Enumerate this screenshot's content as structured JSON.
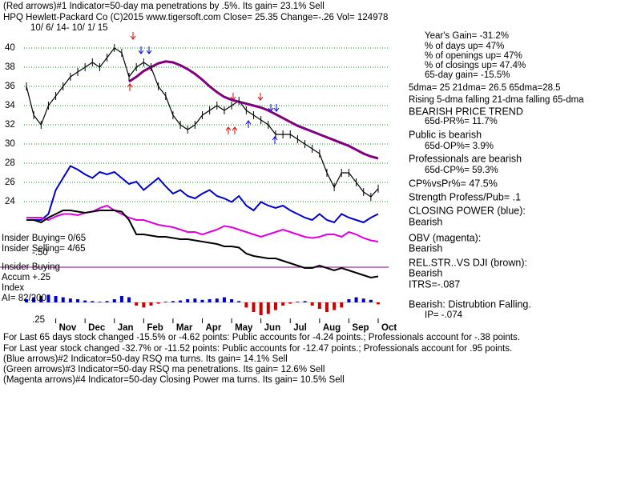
{
  "chart_data": [
    {
      "type": "line",
      "categories": [
        null,
        null,
        null,
        null,
        "Nov",
        null,
        null,
        null,
        "Dec",
        null,
        null,
        null,
        "Jan",
        null,
        null,
        null,
        "Feb",
        null,
        null,
        null,
        "Mar",
        null,
        null,
        null,
        "Apr",
        null,
        null,
        null,
        "May",
        null,
        null,
        null,
        "Jun",
        null,
        null,
        null,
        "Jul",
        null,
        null,
        null,
        "Aug",
        null,
        null,
        null,
        "Sep",
        null,
        null,
        null,
        "Oct"
      ],
      "series": [
        {
          "color": "#000000",
          "values": [
            36,
            33,
            32,
            34,
            35,
            36,
            37,
            37.5,
            38,
            38.5,
            38,
            39,
            40,
            39.5,
            37,
            38,
            38.5,
            38,
            36,
            35,
            33,
            32,
            31.5,
            32,
            33,
            33.5,
            34,
            33.5,
            34,
            34.5,
            33.5,
            33,
            32.5,
            32,
            31,
            31,
            31,
            30.5,
            30,
            29.5,
            29,
            27,
            25.5,
            27,
            27,
            26,
            25,
            24.5,
            25.35
          ]
        },
        {
          "color": "#800080",
          "values": [
            null,
            null,
            null,
            null,
            null,
            null,
            null,
            null,
            null,
            null,
            null,
            null,
            null,
            null,
            36.5,
            37,
            37.6,
            38,
            38.4,
            38.6,
            38.5,
            38.2,
            37.8,
            37.3,
            36.7,
            36,
            35.4,
            34.9,
            34.6,
            34.4,
            34.2,
            34,
            33.8,
            33.5,
            33.1,
            32.7,
            32.3,
            31.9,
            31.6,
            31.3,
            31,
            30.7,
            30.4,
            30.1,
            29.8,
            29.4,
            29,
            28.7,
            28.5
          ]
        }
      ],
      "ylim": [
        24,
        40
      ],
      "yticks": [
        24,
        26,
        28,
        30,
        32,
        34,
        36,
        38,
        40
      ],
      "grid": true
    },
    {
      "type": "line",
      "series": [
        {
          "color": "#0000cc",
          "values": [
            50,
            50,
            50,
            55,
            75,
            85,
            95,
            92,
            88,
            85,
            90,
            88,
            90,
            85,
            80,
            82,
            75,
            80,
            85,
            78,
            72,
            75,
            70,
            68,
            72,
            75,
            70,
            68,
            65,
            70,
            62,
            58,
            65,
            62,
            60,
            62,
            58,
            55,
            52,
            50,
            55,
            50,
            48,
            55,
            52,
            50,
            48,
            52,
            55
          ]
        },
        {
          "color": "#e000e0",
          "values": [
            52,
            52,
            52,
            50,
            53,
            55,
            55,
            54,
            56,
            57,
            60,
            62,
            58,
            55,
            52,
            50,
            50,
            48,
            46,
            45,
            44,
            42,
            40,
            40,
            38,
            40,
            42,
            45,
            44,
            42,
            40,
            38,
            36,
            38,
            40,
            42,
            40,
            38,
            36,
            35,
            36,
            38,
            38,
            36,
            40,
            38,
            35,
            33,
            32
          ]
        },
        {
          "color": "#000000",
          "values": [
            50,
            50,
            48,
            52,
            55,
            58,
            58,
            57,
            56,
            57,
            58,
            58,
            58,
            57,
            50,
            38,
            38,
            37,
            36,
            36,
            35,
            34,
            34,
            33,
            32,
            31,
            30,
            28,
            28,
            27,
            22,
            20,
            19,
            18,
            18,
            16,
            14,
            12,
            10,
            10,
            12,
            10,
            8,
            10,
            8,
            6,
            4,
            2,
            3
          ]
        }
      ],
      "ylim": [
        0,
        100
      ]
    },
    {
      "type": "bar",
      "values": [
        0.05,
        0.08,
        0.1,
        0.12,
        0.1,
        0.08,
        0.06,
        0.05,
        0.03,
        0.02,
        0.01,
        0.02,
        0.05,
        0.1,
        0.08,
        -0.05,
        -0.08,
        -0.05,
        -0.02,
        0.01,
        0.02,
        0.03,
        0.05,
        0.06,
        0.04,
        0.05,
        0.06,
        0.08,
        0.05,
        0.02,
        -0.08,
        -0.15,
        -0.2,
        -0.18,
        -0.12,
        -0.05,
        -0.02,
        0.01,
        0.02,
        -0.05,
        -0.1,
        -0.15,
        -0.12,
        -0.08,
        0.05,
        0.08,
        0.06,
        0.04,
        -0.03
      ],
      "colors": [
        "#0000cc",
        "#cc0000"
      ],
      "ylim": [
        -0.25,
        0.25
      ]
    }
  ],
  "texts": [
    "(Red arrows)#1 Indicator=50-day ma penetrations by .5%. Its gain= 23.1% Sell",
    "HPQ   Hewlett-Packard Co  (C)2015 www.tigersoft.com     Close=  25.35  Change=-.26 Vol= 124978",
    "10/ 6/ 14-  10/ 1/ 15",
    "Year's Gain= -31.2%",
    "% of days up= 47%",
    "% of openings up= 47%",
    "% of closings up= 47.4%",
    "65-day gain= -15.5%",
    "5dma= 25 21dma= 26.5 65dma=28.5",
    "Rising 5-dma falling 21-dma falling 65-dma",
    "BEARISH PRICE TREND",
    "65d-PR%= 11.7%",
    "Public is bearish",
    "65d-OP%= 3.9%",
    "Professionals are bearish",
    "65d-CP%= 59.3%",
    "CP%vsPr%=  47.5%",
    "Strength Profess/Pub= .1",
    "CLOSING POWER (blue):",
    "Bearish",
    "OBV (magenta):",
    "Bearish",
    "REL.STR..VS DJI (brown):",
    "Bearish",
    "ITRS=-.087",
    "Bearish: Distrubtion Falling.",
    "IP= -.074",
    "Insider Buying= 0/65",
    "Insider Selling= 4/65",
    "-.50",
    "Insider Buying",
    "Accum +.25",
    "Index",
    "AI= 82/200",
    ".25",
    "For Last 65 days stock changed -15.5% or -4.62 points:  Public accounts for -4.24 points.;  Professionals account for -.38 points.",
    "For Last year stock changed -32.7% or -11.52 points:  Public accounts for -12.47 points.;  Professionals account for  .95 points.",
    "(Blue arrows)#2 Indicator=50-day RSQ ma turns. Its gain= 14.1% Sell",
    "(Green arrows)#3 Indicator=50-day RSQ ma penetrations. Its gain= 12.6% Sell",
    "(Magenta arrows)#4 Indicator=50-day Closing Power ma turns. Its gain= 10.5% Sell"
  ]
}
